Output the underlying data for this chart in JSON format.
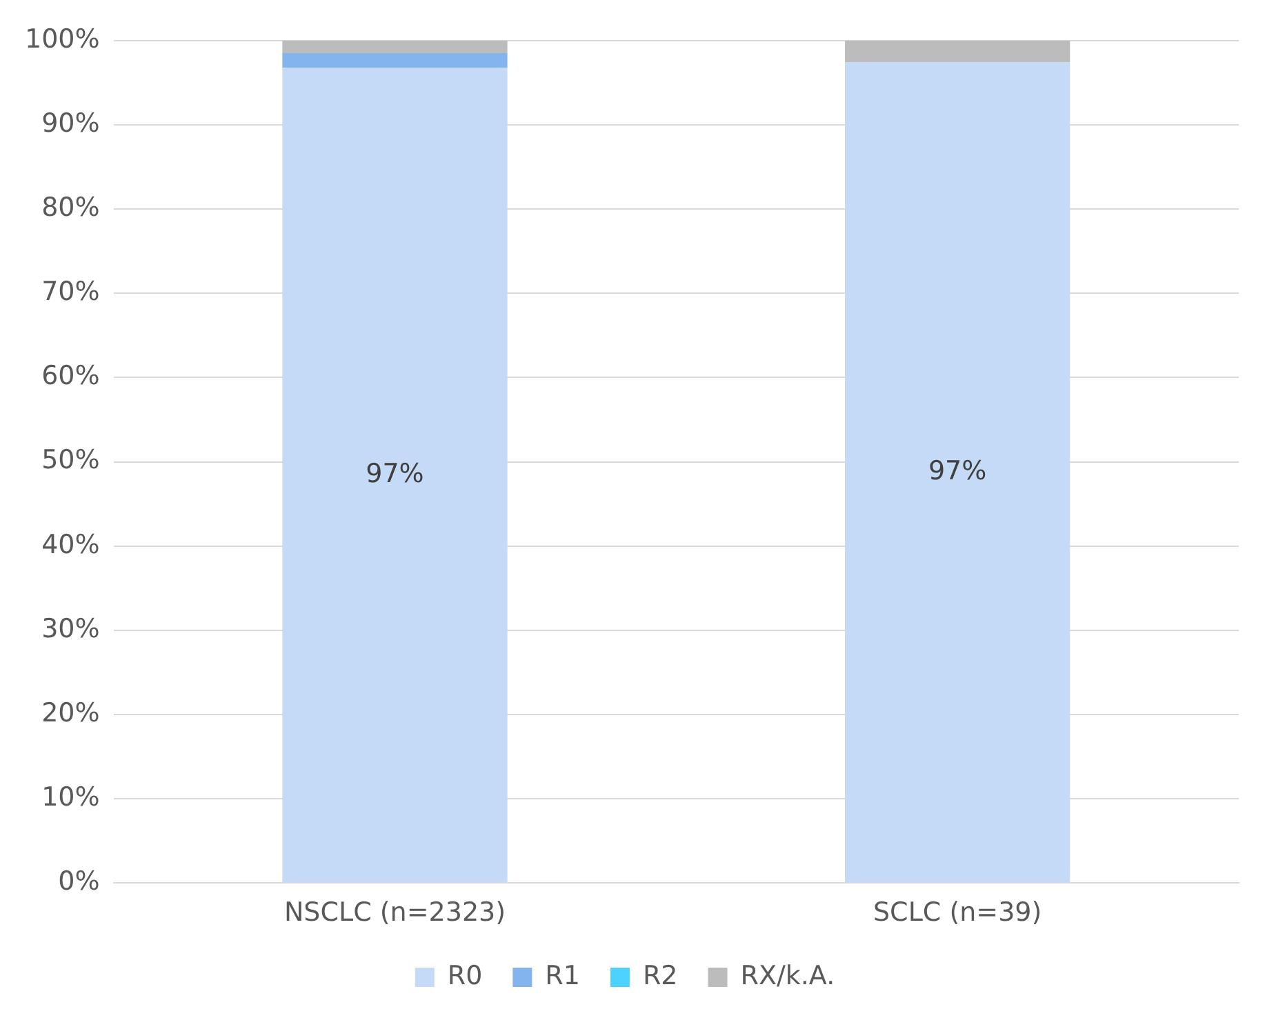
{
  "chart_data": {
    "type": "bar",
    "stacked": true,
    "categories": [
      "NSCLC (n=2323)",
      "SCLC (n=39)"
    ],
    "series": [
      {
        "name": "R0",
        "color": "#c5daf6",
        "values": [
          96.8,
          97.4
        ],
        "value_labels": [
          "97%",
          "97%"
        ]
      },
      {
        "name": "R1",
        "color": "#83b4ee",
        "values": [
          1.7,
          0
        ]
      },
      {
        "name": "R2",
        "color": "#4dd2ff",
        "values": [
          0,
          0
        ]
      },
      {
        "name": "RX/k.A.",
        "color": "#bcbcbc",
        "values": [
          1.5,
          2.6
        ]
      }
    ],
    "ylim": [
      0,
      100
    ],
    "yticks": [
      {
        "value": 0,
        "label": "0%"
      },
      {
        "value": 10,
        "label": "10%"
      },
      {
        "value": 20,
        "label": "20%"
      },
      {
        "value": 30,
        "label": "30%"
      },
      {
        "value": 40,
        "label": "40%"
      },
      {
        "value": 50,
        "label": "50%"
      },
      {
        "value": 60,
        "label": "60%"
      },
      {
        "value": 70,
        "label": "70%"
      },
      {
        "value": 80,
        "label": "80%"
      },
      {
        "value": 90,
        "label": "90%"
      },
      {
        "value": 100,
        "label": "100%"
      }
    ],
    "grid": "y",
    "legend": "bottom"
  }
}
